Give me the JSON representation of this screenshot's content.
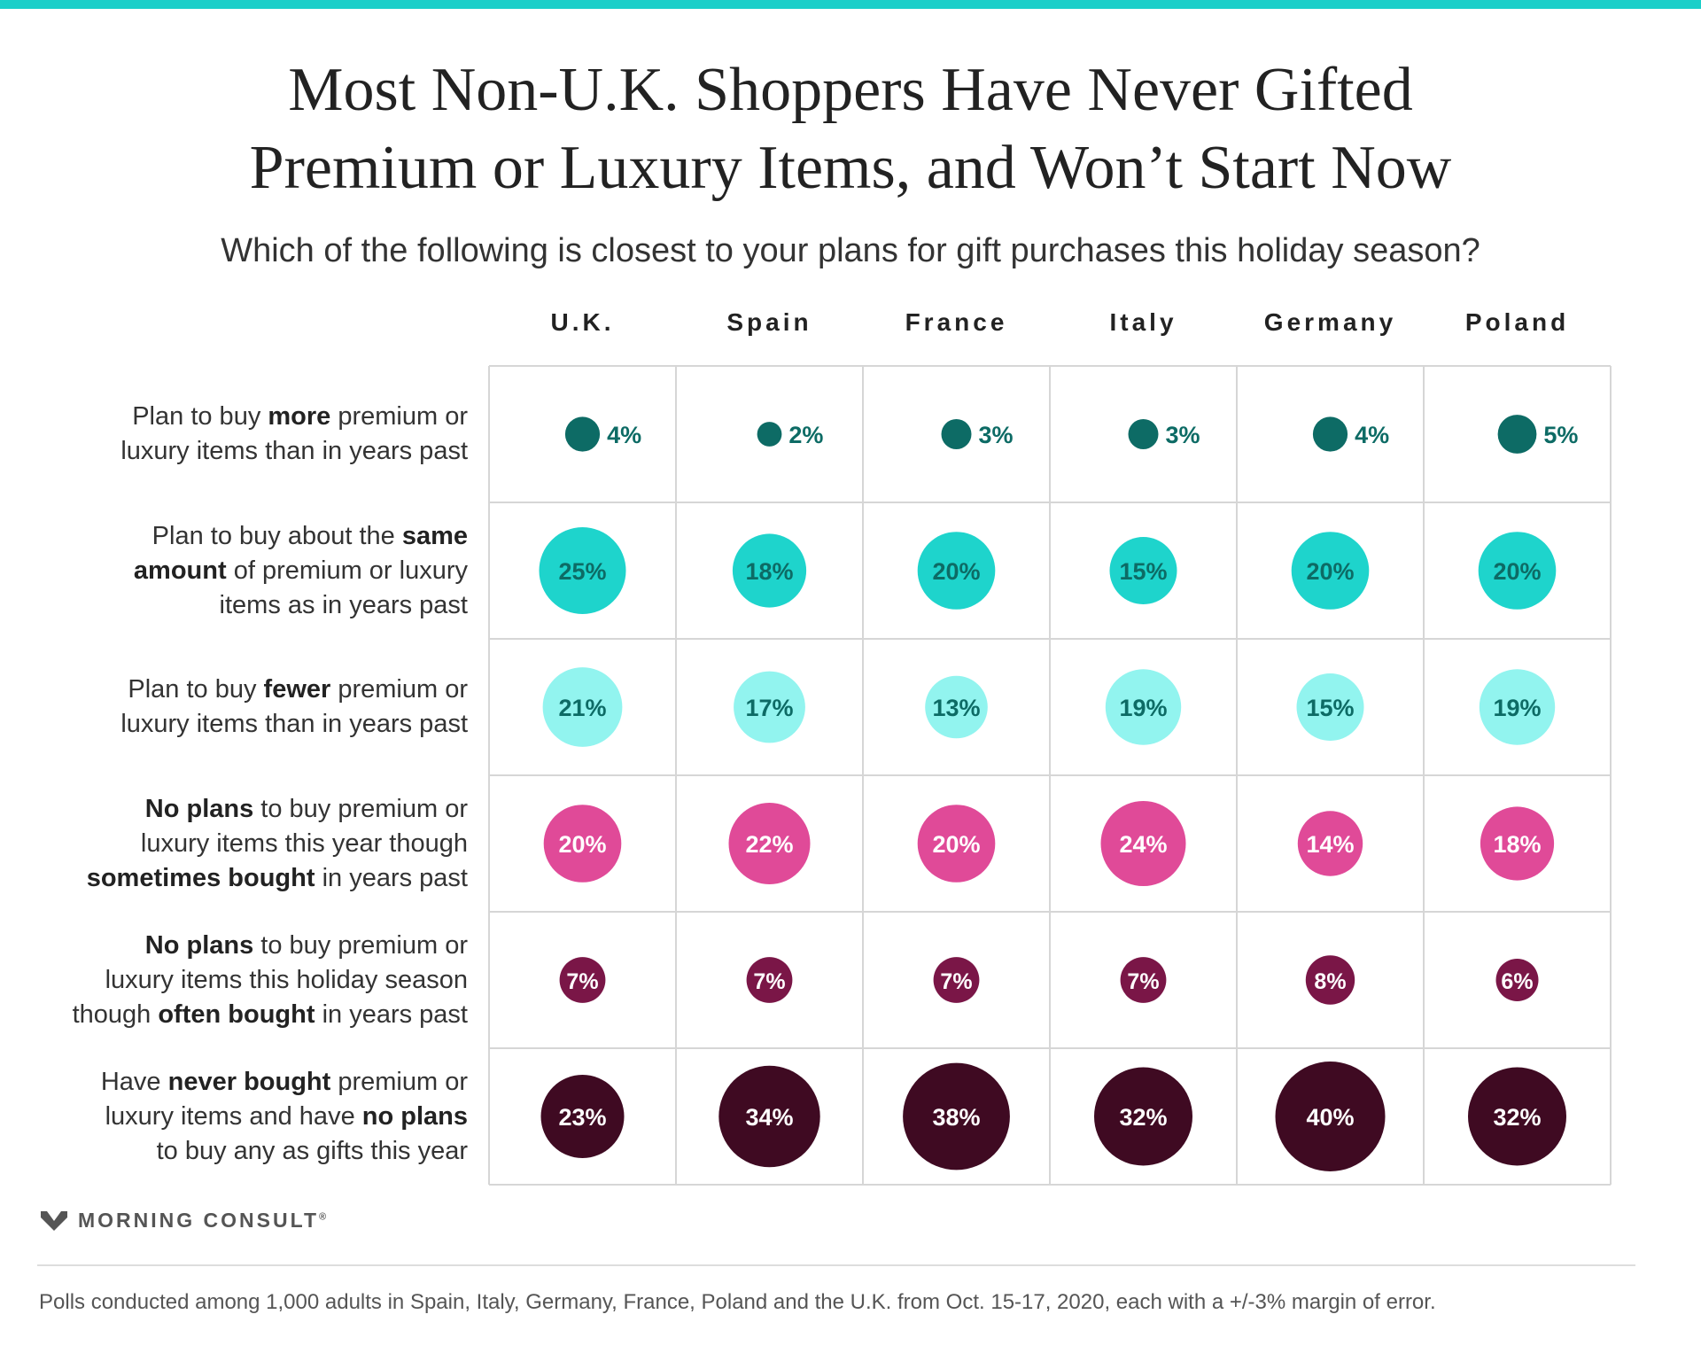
{
  "title": {
    "line1": "Most Non-U.K. Shoppers Have Never Gifted",
    "line2": "Premium or Luxury Items, and Won’t Start Now"
  },
  "subtitle": "Which of the following is closest to your plans for gift purchases this holiday season?",
  "brand": "MORNING CONSULT",
  "brand_mark": "®",
  "footnote": "Polls conducted among 1,000 adults in Spain, Italy, Germany, France, Poland and the U.K. from Oct. 15-17, 2020, each with a +/-3% margin of error.",
  "colors": {
    "accent_bar": "#1ccfc9",
    "more": "#0d6b65",
    "same": "#1ed4cc",
    "fewer": "#92f4ef",
    "no_plans_sometimes": "#e04a98",
    "no_plans_often": "#7a1647",
    "never": "#3f0a22",
    "grid": "#d6d6d6"
  },
  "chart_data": {
    "type": "bubble-matrix",
    "title": "Most Non-U.K. Shoppers Have Never Gifted Premium or Luxury Items, and Won’t Start Now",
    "categories": [
      "U.K.",
      "Spain",
      "France",
      "Italy",
      "Germany",
      "Poland"
    ],
    "unit": "%",
    "rows": [
      {
        "key": "more",
        "label_parts": [
          [
            {
              "t": "Plan to buy ",
              "b": false
            },
            {
              "t": "more",
              "b": true
            },
            {
              "t": " premium or",
              "b": false
            }
          ],
          [
            {
              "t": "luxury items than in years past",
              "b": false
            }
          ]
        ],
        "values": [
          4,
          2,
          3,
          3,
          4,
          5
        ],
        "label_outside": true,
        "text_color": "#0d6b65"
      },
      {
        "key": "same",
        "label_parts": [
          [
            {
              "t": "Plan to buy about the ",
              "b": false
            },
            {
              "t": "same",
              "b": true
            }
          ],
          [
            {
              "t": "amount",
              "b": true
            },
            {
              "t": " of premium or luxury",
              "b": false
            }
          ],
          [
            {
              "t": "items as in years past",
              "b": false
            }
          ]
        ],
        "values": [
          25,
          18,
          20,
          15,
          20,
          20
        ],
        "label_outside": false,
        "text_color": "#0d6b65"
      },
      {
        "key": "fewer",
        "label_parts": [
          [
            {
              "t": "Plan to buy ",
              "b": false
            },
            {
              "t": "fewer",
              "b": true
            },
            {
              "t": " premium or",
              "b": false
            }
          ],
          [
            {
              "t": "luxury items than in years past",
              "b": false
            }
          ]
        ],
        "values": [
          21,
          17,
          13,
          19,
          15,
          19
        ],
        "label_outside": false,
        "text_color": "#0d6b65"
      },
      {
        "key": "no_plans_sometimes",
        "label_parts": [
          [
            {
              "t": "No plans",
              "b": true
            },
            {
              "t": " to buy premium or",
              "b": false
            }
          ],
          [
            {
              "t": "luxury items this year though",
              "b": false
            }
          ],
          [
            {
              "t": "sometimes bought",
              "b": true
            },
            {
              "t": " in years past",
              "b": false
            }
          ]
        ],
        "values": [
          20,
          22,
          20,
          24,
          14,
          18
        ],
        "label_outside": false,
        "text_color": "#ffffff"
      },
      {
        "key": "no_plans_often",
        "label_parts": [
          [
            {
              "t": "No plans",
              "b": true
            },
            {
              "t": " to buy premium or",
              "b": false
            }
          ],
          [
            {
              "t": "luxury items this holiday season",
              "b": false
            }
          ],
          [
            {
              "t": "though ",
              "b": false
            },
            {
              "t": "often bought",
              "b": true
            },
            {
              "t": " in years past",
              "b": false
            }
          ]
        ],
        "values": [
          7,
          7,
          7,
          7,
          8,
          6
        ],
        "label_outside": false,
        "text_color": "#ffffff"
      },
      {
        "key": "never",
        "label_parts": [
          [
            {
              "t": "Have ",
              "b": false
            },
            {
              "t": "never bought",
              "b": true
            },
            {
              "t": " premium or",
              "b": false
            }
          ],
          [
            {
              "t": "luxury items and have ",
              "b": false
            },
            {
              "t": "no plans",
              "b": true
            }
          ],
          [
            {
              "t": "to buy any as gifts this year",
              "b": false
            }
          ]
        ],
        "values": [
          23,
          34,
          38,
          32,
          40,
          32
        ],
        "label_outside": false,
        "text_color": "#ffffff"
      }
    ]
  }
}
